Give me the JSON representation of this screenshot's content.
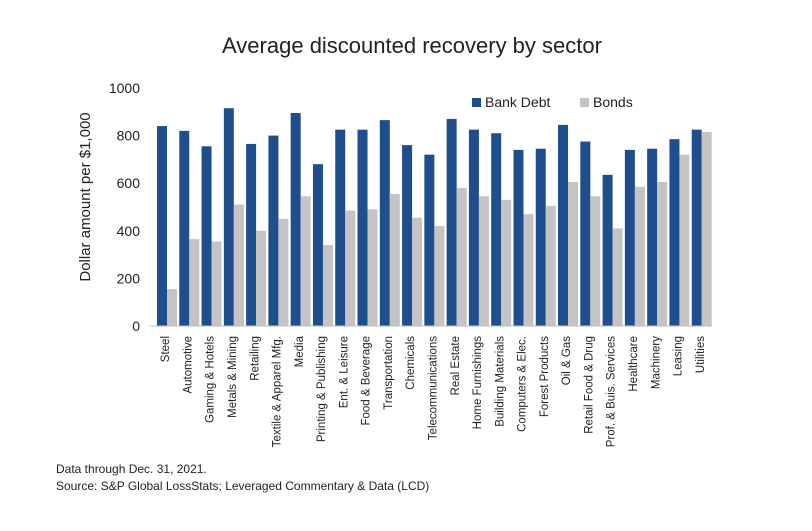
{
  "chart_data": {
    "type": "bar",
    "title": "Average discounted recovery by sector",
    "ylabel": "Dollar amount per $1,000",
    "xlabel": "",
    "ylim": [
      0,
      1000
    ],
    "yticks": [
      0,
      200,
      400,
      600,
      800,
      1000
    ],
    "grid": false,
    "legend_position": "top-right",
    "categories": [
      "Steel",
      "Automotive",
      "Gaming & Hotels",
      "Metals & Mining",
      "Retailing",
      "Textile & Apparel Mfg.",
      "Media",
      "Printing & Publishing",
      "Ent. & Leisure",
      "Food & Beverage",
      "Transportation",
      "Chemicals",
      "Telecommunications",
      "Real Estate",
      "Home Furnishings",
      "Building Materials",
      "Computers & Elec.",
      "Forest Products",
      "Oil & Gas",
      "Retail Food & Drug",
      "Prof. & Buis. Services",
      "Healthcare",
      "Machinery",
      "Leasing",
      "Utilities"
    ],
    "series": [
      {
        "name": "Bank Debt",
        "color": "#1f4e8c",
        "values": [
          840,
          820,
          755,
          915,
          765,
          800,
          895,
          680,
          825,
          825,
          865,
          760,
          720,
          870,
          825,
          810,
          740,
          745,
          845,
          775,
          635,
          740,
          745,
          785,
          825
        ]
      },
      {
        "name": "Bonds",
        "color": "#c4c4c4",
        "values": [
          155,
          365,
          355,
          510,
          400,
          450,
          545,
          340,
          485,
          490,
          555,
          455,
          420,
          580,
          545,
          530,
          470,
          505,
          605,
          545,
          410,
          585,
          605,
          720,
          815
        ]
      }
    ]
  },
  "footer": {
    "line1": "Data through Dec. 31, 2021.",
    "line2": "Source: S&P Global LossStats; Leveraged Commentary & Data (LCD)"
  }
}
